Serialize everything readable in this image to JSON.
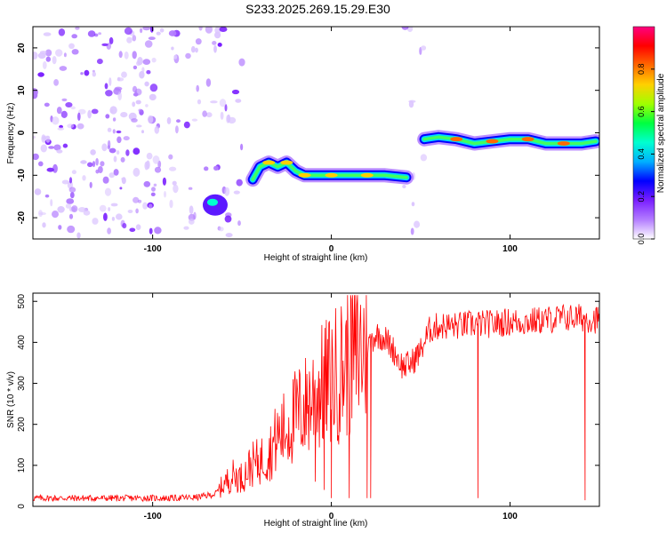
{
  "title": "S233.2025.269.15.29.E30",
  "chart_data": [
    {
      "type": "heatmap",
      "xlabel": "Height of straight line (km)",
      "ylabel": "Frequency (Hz)",
      "xlim": [
        -167,
        150
      ],
      "ylim": [
        -25,
        25
      ],
      "x_ticks": [
        -100,
        0,
        100
      ],
      "y_ticks": [
        -20,
        -10,
        0,
        10,
        20
      ],
      "colorbar": {
        "label": "Normalized spectral amplitude",
        "range": [
          0.0,
          1.0
        ],
        "ticks": [
          "0.0",
          "0.2",
          "0.4",
          "0.6",
          "0.8"
        ],
        "colors": [
          "#ffffff",
          "#b37dff",
          "#7a1fff",
          "#0000ff",
          "#00b0ff",
          "#00ffd0",
          "#00ff40",
          "#a0ff00",
          "#ffd000",
          "#ff6a00",
          "#ff0000",
          "#ff0080"
        ]
      },
      "noise_regions": [
        {
          "x_range": [
            -167,
            -95
          ],
          "freq_range": [
            -25,
            25
          ],
          "level": 0.12
        },
        {
          "x_range": [
            -95,
            -50
          ],
          "freq_range": [
            -25,
            25
          ],
          "level": 0.06
        },
        {
          "x_range": [
            40,
            52
          ],
          "freq_range": [
            -25,
            25
          ],
          "level": 0.05
        }
      ],
      "blob": {
        "x": -65,
        "freq": -17,
        "level": 0.45
      },
      "tracks": [
        {
          "points": [
            [
              -44,
              -11
            ],
            [
              -40,
              -8
            ],
            [
              -35,
              -7
            ],
            [
              -30,
              -8
            ],
            [
              -25,
              -7
            ],
            [
              -20,
              -9
            ],
            [
              -15,
              -10
            ],
            [
              -10,
              -10
            ],
            [
              0,
              -10
            ],
            [
              10,
              -10
            ],
            [
              20,
              -10
            ],
            [
              30,
              -10
            ],
            [
              42,
              -10.5
            ]
          ],
          "level": 0.7
        },
        {
          "points": [
            [
              52,
              -1.5
            ],
            [
              60,
              -1
            ],
            [
              70,
              -1.5
            ],
            [
              80,
              -2.5
            ],
            [
              90,
              -2
            ],
            [
              100,
              -1.5
            ],
            [
              110,
              -1.5
            ],
            [
              120,
              -2.5
            ],
            [
              130,
              -2.5
            ],
            [
              140,
              -2.5
            ],
            [
              148,
              -2
            ]
          ],
          "level": 0.85
        }
      ]
    },
    {
      "type": "line",
      "xlabel": "Height of straight line (km)",
      "ylabel": "SNR (10 * v/v)",
      "xlim": [
        -167,
        150
      ],
      "ylim": [
        0,
        520
      ],
      "x_ticks": [
        -100,
        0,
        100
      ],
      "y_ticks": [
        0,
        100,
        200,
        300,
        400,
        500
      ],
      "color": "#ff0000",
      "series": [
        {
          "x": [
            -167,
            -150,
            -130,
            -110,
            -90,
            -75,
            -65,
            -60,
            -55,
            -50,
            -45,
            -40,
            -35,
            -30,
            -25,
            -20,
            -15,
            -10,
            -5,
            0,
            5,
            10,
            15,
            20,
            25,
            30,
            35,
            40,
            45,
            50,
            55,
            60,
            70,
            80,
            90,
            100,
            110,
            120,
            130,
            140,
            150
          ],
          "values": [
            20,
            20,
            20,
            20,
            20,
            22,
            30,
            55,
            75,
            70,
            100,
            110,
            130,
            170,
            190,
            220,
            240,
            270,
            290,
            310,
            330,
            360,
            380,
            390,
            420,
            410,
            380,
            340,
            350,
            380,
            430,
            440,
            440,
            445,
            445,
            450,
            450,
            455,
            460,
            460,
            455
          ]
        }
      ],
      "dropouts": [
        [
          -9,
          60
        ],
        [
          -4,
          40
        ],
        [
          0,
          20
        ],
        [
          10,
          20
        ],
        [
          20,
          20
        ],
        [
          22,
          20
        ],
        [
          82,
          20
        ],
        [
          142,
          15
        ]
      ]
    }
  ]
}
